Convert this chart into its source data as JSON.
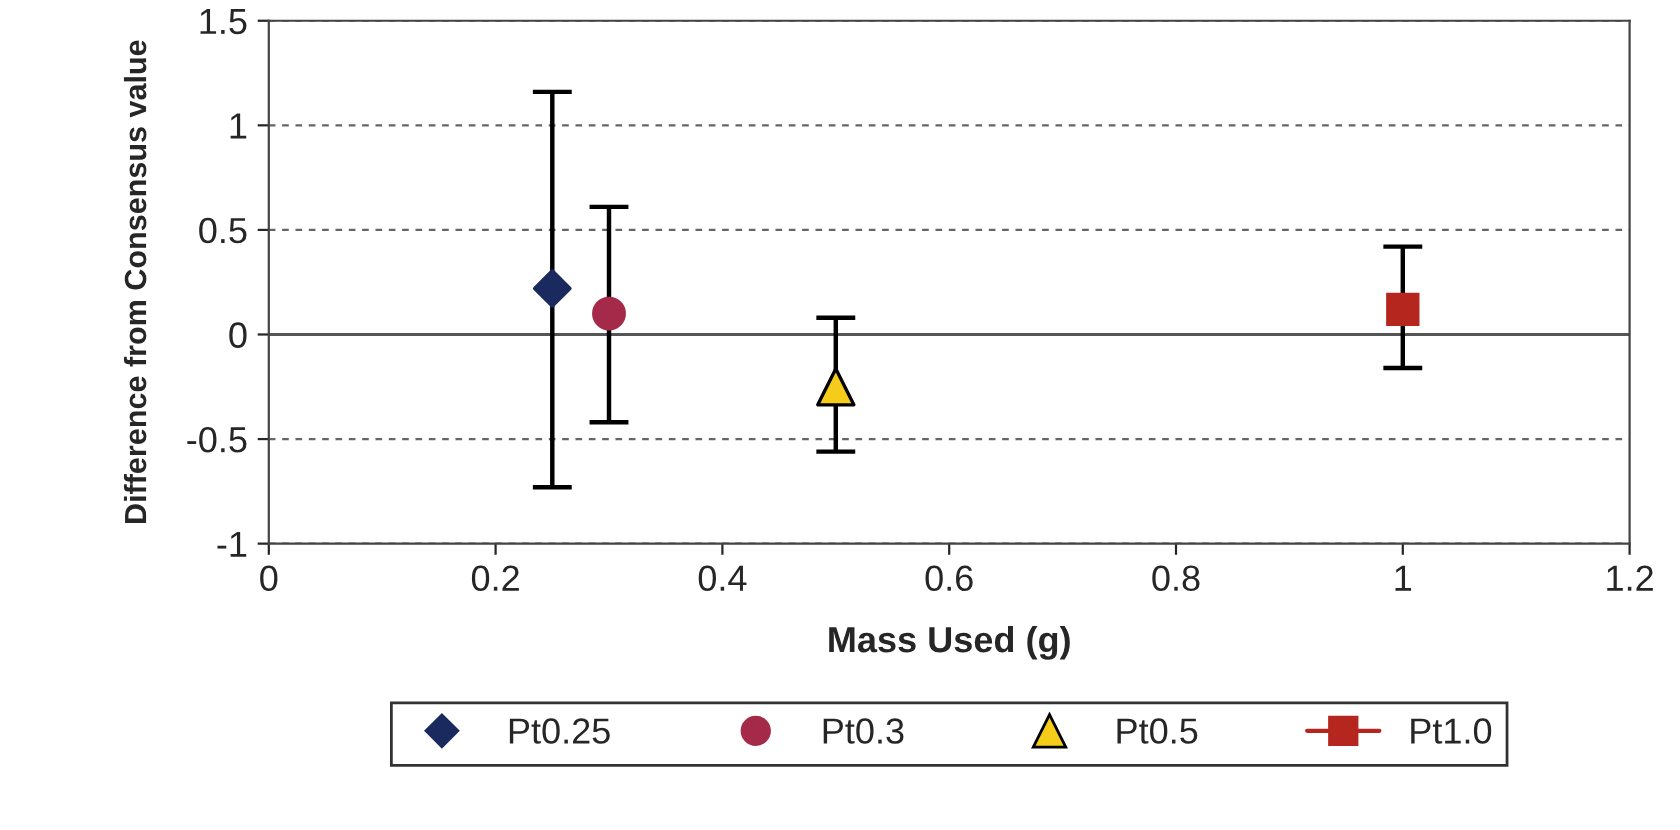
{
  "chart_data": {
    "type": "scatter",
    "xlabel": "Mass Used (g)",
    "ylabel": "Difference from Consensus value",
    "series": [
      {
        "name": "Pt0.25",
        "marker": "diamond",
        "color": "#1b2a5e",
        "x": [
          0.25
        ],
        "values": [
          0.22
        ],
        "errors": [
          [
            -0.73,
            1.16
          ]
        ]
      },
      {
        "name": "Pt0.3",
        "marker": "circle",
        "color": "#a52a4a",
        "x": [
          0.3
        ],
        "values": [
          0.1
        ],
        "errors": [
          [
            -0.42,
            0.61
          ]
        ]
      },
      {
        "name": "Pt0.5",
        "marker": "triangle",
        "color": "#f5cc1a",
        "x": [
          0.5
        ],
        "values": [
          -0.25
        ],
        "errors": [
          [
            -0.56,
            0.08
          ]
        ]
      },
      {
        "name": "Pt1.0",
        "type": "line",
        "marker": "square",
        "color": "#b5261e",
        "x": [
          1.0
        ],
        "values": [
          0.12
        ],
        "errors": [
          [
            -0.16,
            0.42
          ]
        ]
      }
    ],
    "xlim": [
      0,
      1.2
    ],
    "xticks": [
      0,
      0.2,
      0.4,
      0.6,
      0.8,
      1,
      1.2
    ],
    "ylim": [
      -1,
      1.5
    ],
    "yticks": [
      -1,
      -0.5,
      0,
      0.5,
      1,
      1.5
    ],
    "grid": "y",
    "legend": "bottom",
    "ref_lines": [
      {
        "axis": "y",
        "value": 0,
        "color": "#555555",
        "line_style": "solid"
      }
    ]
  }
}
